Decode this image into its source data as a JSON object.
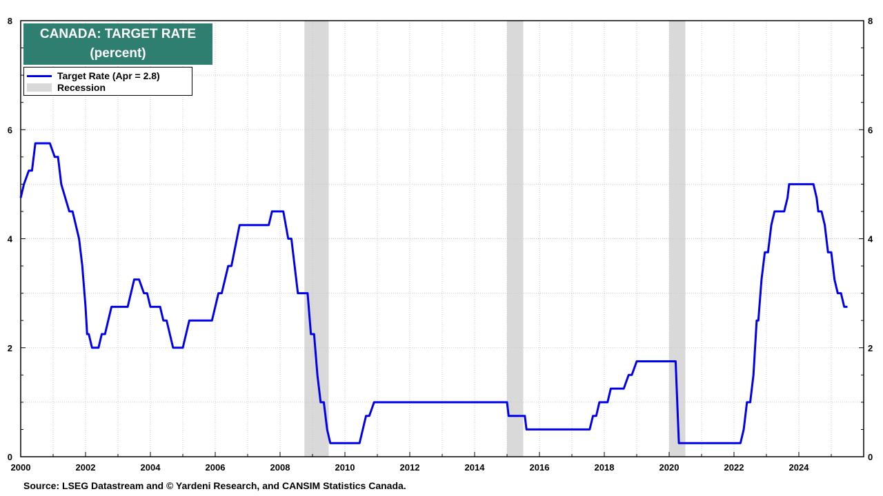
{
  "chart_data": {
    "type": "line",
    "title": "CANADA: TARGET RATE",
    "subtitle": "(percent)",
    "xlabel": "",
    "ylabel": "",
    "xlim": [
      2000.0,
      2026.0
    ],
    "ylim": [
      0,
      8
    ],
    "yticks": [
      0,
      2,
      4,
      6,
      8
    ],
    "xticks": [
      2000,
      2002,
      2004,
      2006,
      2008,
      2010,
      2012,
      2014,
      2016,
      2018,
      2020,
      2022,
      2024
    ],
    "grid": true,
    "legend_placement": "top-left",
    "series": [
      {
        "name": "Target Rate (Apr = 2.8)",
        "color": "#0000ee",
        "points": [
          [
            2000.0,
            4.75
          ],
          [
            2000.1,
            5.0
          ],
          [
            2000.25,
            5.25
          ],
          [
            2000.35,
            5.25
          ],
          [
            2000.45,
            5.75
          ],
          [
            2000.6,
            5.75
          ],
          [
            2000.9,
            5.75
          ],
          [
            2001.05,
            5.5
          ],
          [
            2001.15,
            5.5
          ],
          [
            2001.25,
            5.0
          ],
          [
            2001.5,
            4.5
          ],
          [
            2001.6,
            4.5
          ],
          [
            2001.8,
            4.0
          ],
          [
            2001.9,
            3.5
          ],
          [
            2002.0,
            2.75
          ],
          [
            2002.05,
            2.25
          ],
          [
            2002.1,
            2.25
          ],
          [
            2002.2,
            2.0
          ],
          [
            2002.3,
            2.0
          ],
          [
            2002.4,
            2.0
          ],
          [
            2002.5,
            2.25
          ],
          [
            2002.6,
            2.25
          ],
          [
            2002.8,
            2.75
          ],
          [
            2003.0,
            2.75
          ],
          [
            2003.2,
            2.75
          ],
          [
            2003.3,
            2.75
          ],
          [
            2003.5,
            3.25
          ],
          [
            2003.65,
            3.25
          ],
          [
            2003.8,
            3.0
          ],
          [
            2003.9,
            3.0
          ],
          [
            2004.0,
            2.75
          ],
          [
            2004.3,
            2.75
          ],
          [
            2004.4,
            2.5
          ],
          [
            2004.5,
            2.5
          ],
          [
            2004.7,
            2.0
          ],
          [
            2005.0,
            2.0
          ],
          [
            2005.2,
            2.5
          ],
          [
            2005.3,
            2.5
          ],
          [
            2005.7,
            2.5
          ],
          [
            2005.9,
            2.5
          ],
          [
            2006.1,
            3.0
          ],
          [
            2006.2,
            3.0
          ],
          [
            2006.4,
            3.5
          ],
          [
            2006.5,
            3.5
          ],
          [
            2006.75,
            4.25
          ],
          [
            2007.0,
            4.25
          ],
          [
            2007.5,
            4.25
          ],
          [
            2007.65,
            4.25
          ],
          [
            2007.75,
            4.5
          ],
          [
            2008.0,
            4.5
          ],
          [
            2008.1,
            4.5
          ],
          [
            2008.25,
            4.0
          ],
          [
            2008.35,
            4.0
          ],
          [
            2008.55,
            3.0
          ],
          [
            2008.7,
            3.0
          ],
          [
            2008.85,
            3.0
          ],
          [
            2008.95,
            2.25
          ],
          [
            2009.05,
            2.25
          ],
          [
            2009.15,
            1.5
          ],
          [
            2009.25,
            1.0
          ],
          [
            2009.35,
            1.0
          ],
          [
            2009.45,
            0.5
          ],
          [
            2009.55,
            0.25
          ],
          [
            2009.8,
            0.25
          ],
          [
            2010.0,
            0.25
          ],
          [
            2010.2,
            0.25
          ],
          [
            2010.45,
            0.25
          ],
          [
            2010.65,
            0.75
          ],
          [
            2010.75,
            0.75
          ],
          [
            2010.9,
            1.0
          ],
          [
            2012.0,
            1.0
          ],
          [
            2013.0,
            1.0
          ],
          [
            2014.0,
            1.0
          ],
          [
            2015.0,
            1.0
          ],
          [
            2015.05,
            0.75
          ],
          [
            2015.3,
            0.75
          ],
          [
            2015.55,
            0.75
          ],
          [
            2015.6,
            0.5
          ],
          [
            2016.0,
            0.5
          ],
          [
            2017.0,
            0.5
          ],
          [
            2017.55,
            0.5
          ],
          [
            2017.65,
            0.75
          ],
          [
            2017.75,
            0.75
          ],
          [
            2017.85,
            1.0
          ],
          [
            2018.0,
            1.0
          ],
          [
            2018.1,
            1.0
          ],
          [
            2018.2,
            1.25
          ],
          [
            2018.3,
            1.25
          ],
          [
            2018.5,
            1.25
          ],
          [
            2018.6,
            1.25
          ],
          [
            2018.75,
            1.5
          ],
          [
            2018.85,
            1.5
          ],
          [
            2019.0,
            1.75
          ],
          [
            2019.5,
            1.75
          ],
          [
            2020.0,
            1.75
          ],
          [
            2020.2,
            1.75
          ],
          [
            2020.3,
            0.25
          ],
          [
            2020.5,
            0.25
          ],
          [
            2021.0,
            0.25
          ],
          [
            2022.2,
            0.25
          ],
          [
            2022.3,
            0.5
          ],
          [
            2022.4,
            1.0
          ],
          [
            2022.5,
            1.0
          ],
          [
            2022.6,
            1.5
          ],
          [
            2022.7,
            2.5
          ],
          [
            2022.75,
            2.5
          ],
          [
            2022.85,
            3.25
          ],
          [
            2022.95,
            3.75
          ],
          [
            2023.05,
            3.75
          ],
          [
            2023.15,
            4.25
          ],
          [
            2023.25,
            4.5
          ],
          [
            2023.5,
            4.5
          ],
          [
            2023.55,
            4.5
          ],
          [
            2023.65,
            4.75
          ],
          [
            2023.7,
            5.0
          ],
          [
            2024.0,
            5.0
          ],
          [
            2024.4,
            5.0
          ],
          [
            2024.45,
            5.0
          ],
          [
            2024.55,
            4.75
          ],
          [
            2024.6,
            4.5
          ],
          [
            2024.7,
            4.5
          ],
          [
            2024.8,
            4.25
          ],
          [
            2024.9,
            3.75
          ],
          [
            2025.0,
            3.75
          ],
          [
            2025.1,
            3.25
          ],
          [
            2025.2,
            3.0
          ],
          [
            2025.3,
            3.0
          ],
          [
            2025.4,
            2.75
          ],
          [
            2025.5,
            2.75
          ]
        ]
      }
    ],
    "recessions": {
      "name": "Recession",
      "color": "#d9d9d9",
      "periods": [
        [
          2008.75,
          2009.5
        ],
        [
          2015.0,
          2015.5
        ],
        [
          2020.0,
          2020.5
        ]
      ]
    }
  },
  "header": {
    "title_line1": "CANADA: TARGET RATE",
    "title_line2": "(percent)",
    "title_bg": "#2f7f70"
  },
  "legend": {
    "line_label": "Target Rate (Apr = 2.8)",
    "recession_label": "Recession"
  },
  "footer": {
    "source": "Source: LSEG Datastream and © Yardeni Research, and CANSIM Statistics Canada."
  }
}
